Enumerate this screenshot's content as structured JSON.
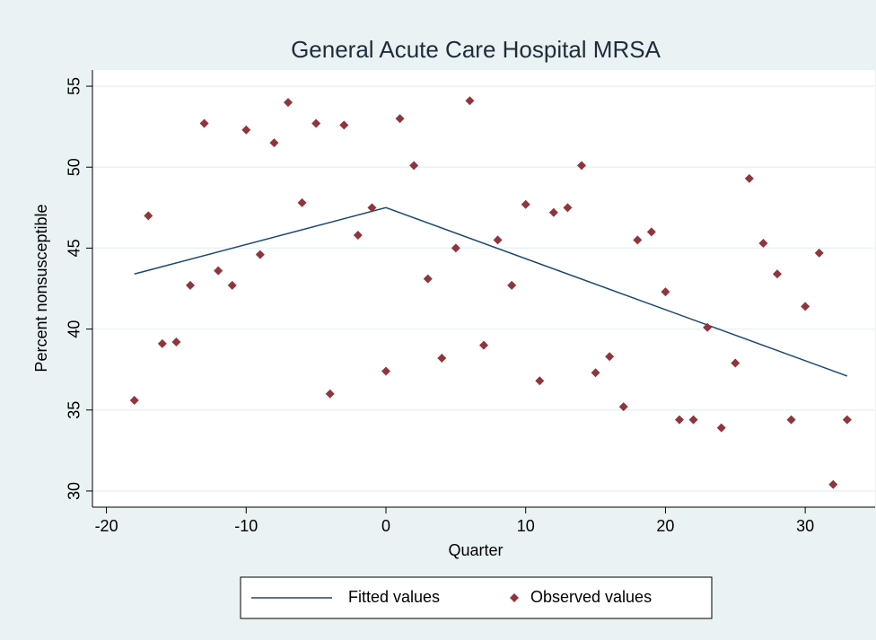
{
  "chart_data": {
    "type": "scatter",
    "title": "General Acute Care Hospital MRSA",
    "x_label": "Quarter",
    "y_label": "Percent nonsusceptible",
    "xlim": [
      -21,
      35
    ],
    "xticks": [
      -20,
      -10,
      0,
      10,
      20,
      30
    ],
    "ylim": [
      29,
      56
    ],
    "yticks": [
      30,
      35,
      40,
      45,
      50,
      55
    ],
    "grid": true,
    "legend": "bottom",
    "series": [
      {
        "name": "Fitted values",
        "type": "line",
        "color": "#1a476f",
        "x": [
          -18,
          0,
          33
        ],
        "values": [
          43.4,
          47.5,
          37.1
        ]
      },
      {
        "name": "Observed values",
        "type": "scatter",
        "color": "#90353b",
        "x": [
          -18,
          -17,
          -16,
          -15,
          -14,
          -13,
          -12,
          -11,
          -10,
          -9,
          -8,
          -7,
          -6,
          -5,
          -4,
          -3,
          -2,
          -1,
          0,
          1,
          2,
          3,
          4,
          5,
          6,
          7,
          8,
          9,
          10,
          11,
          12,
          13,
          14,
          15,
          16,
          17,
          18,
          19,
          20,
          21,
          22,
          23,
          24,
          25,
          26,
          27,
          28,
          29,
          30,
          31,
          32,
          33
        ],
        "values": [
          35.6,
          47.0,
          39.1,
          39.2,
          42.7,
          52.7,
          43.6,
          42.7,
          52.3,
          44.6,
          51.5,
          54.0,
          47.8,
          52.7,
          36.0,
          52.6,
          45.8,
          47.5,
          37.4,
          53.0,
          50.1,
          43.1,
          38.2,
          45.0,
          54.1,
          39.0,
          45.5,
          42.7,
          47.7,
          36.8,
          47.2,
          47.5,
          50.1,
          37.3,
          38.3,
          35.2,
          45.5,
          46.0,
          42.3,
          34.4,
          34.4,
          40.1,
          33.9,
          37.9,
          49.3,
          45.3,
          43.4,
          34.4,
          41.4,
          44.7,
          30.4,
          34.4
        ]
      }
    ]
  }
}
